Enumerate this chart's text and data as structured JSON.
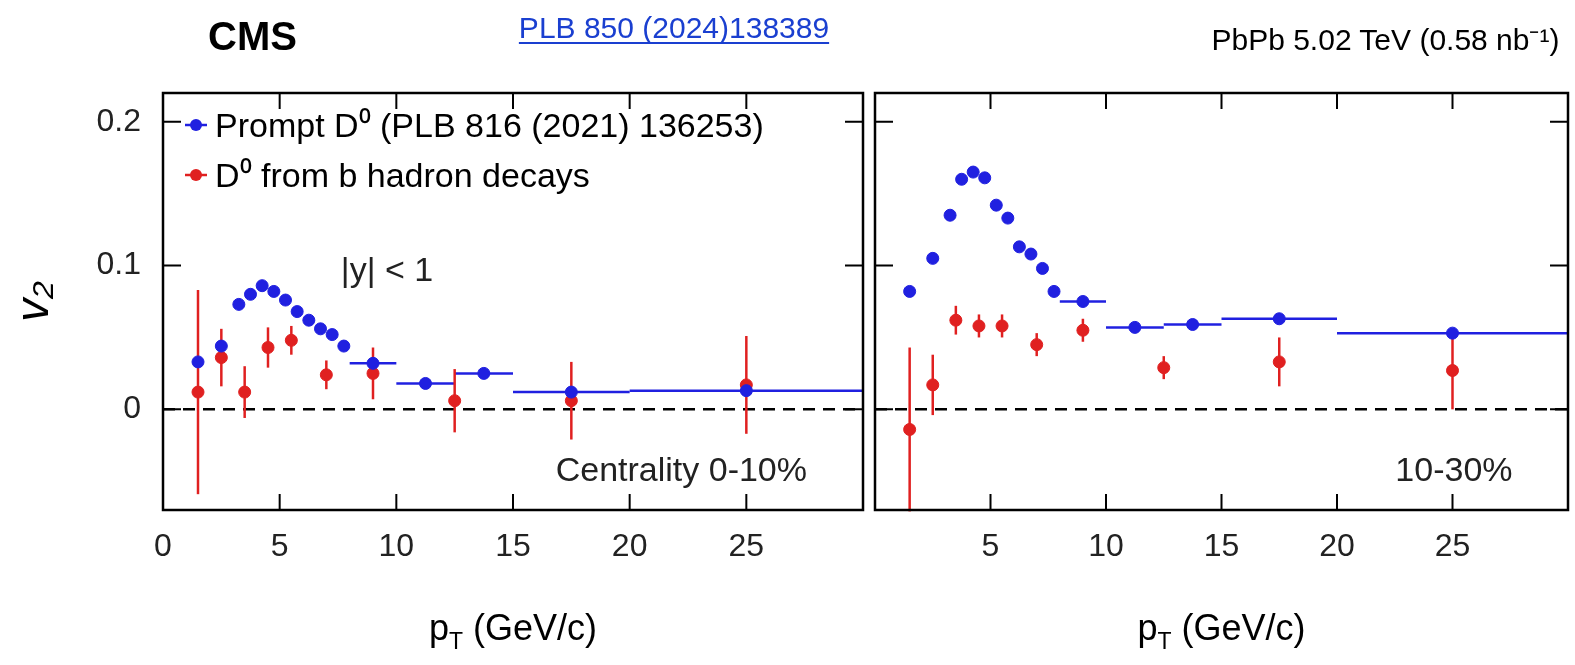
{
  "chart_data": [
    {
      "type": "scatter",
      "title": "CMS",
      "xlabel": "p$_{T}$ (GeV/c)",
      "ylabel": "v₂",
      "legend": "top left",
      "marker": "circle",
      "annotations": [
        "PLB 850 (2024)138389",
        "|y| < 1",
        "Centrality 0-10%"
      ],
      "xlim": [
        0,
        30
      ],
      "xticks": [
        0,
        5,
        10,
        15,
        20,
        25
      ],
      "ylim": [
        -0.07,
        0.22
      ],
      "yticks": [
        0,
        0.1,
        0.2
      ],
      "ref_lines": [
        {
          "axis": "y",
          "value": 0,
          "line_style": "dashed",
          "color": "#000000"
        }
      ],
      "series": [
        {
          "name": "Prompt D⁰ (PLB 816 (2021) 136253)",
          "color": "#2020e0",
          "x": [
            1.5,
            2.5,
            3.25,
            3.75,
            4.25,
            4.75,
            5.25,
            5.75,
            6.25,
            6.75,
            7.25,
            7.75,
            9,
            11.25,
            13.75,
            17.5,
            25
          ],
          "values": [
            0.033,
            0.044,
            0.073,
            0.08,
            0.086,
            0.082,
            0.076,
            0.068,
            0.062,
            0.056,
            0.052,
            0.044,
            0.032,
            0.018,
            0.025,
            0.012,
            0.013
          ],
          "xerrors": [
            null,
            null,
            null,
            null,
            null,
            null,
            null,
            null,
            null,
            null,
            null,
            null,
            1,
            1.25,
            1.25,
            2.5,
            5
          ]
        },
        {
          "name": "D⁰ from b hadron decays",
          "color": "#e02020",
          "x": [
            1.5,
            2.5,
            3.5,
            4.5,
            5.5,
            7,
            9,
            12.5,
            17.5,
            25
          ],
          "values": [
            0.012,
            0.036,
            0.012,
            0.043,
            0.048,
            0.024,
            0.025,
            0.006,
            0.006,
            0.017
          ],
          "errors": [
            0.071,
            0.02,
            0.018,
            0.014,
            0.01,
            0.01,
            0.018,
            0.022,
            0.027,
            0.034
          ]
        }
      ]
    },
    {
      "type": "scatter",
      "title": "PbPb 5.02 TeV (0.58 nb⁻¹)",
      "xlabel": "p$_{T}$ (GeV/c)",
      "marker": "circle",
      "tick_labels": "x",
      "annotations": [
        "10-30%"
      ],
      "xlim": [
        0,
        30
      ],
      "xticks": [
        5,
        10,
        15,
        20,
        25
      ],
      "ylim": [
        -0.07,
        0.22
      ],
      "yticks": [
        0,
        0.1,
        0.2
      ],
      "ref_lines": [
        {
          "axis": "y",
          "value": 0,
          "line_style": "dashed",
          "color": "#000000"
        }
      ],
      "series": [
        {
          "color": "#2020e0",
          "x": [
            1.5,
            2.5,
            3.25,
            3.75,
            4.25,
            4.75,
            5.25,
            5.75,
            6.25,
            6.75,
            7.25,
            7.75,
            9,
            11.25,
            13.75,
            17.5,
            25
          ],
          "values": [
            0.082,
            0.105,
            0.135,
            0.16,
            0.165,
            0.161,
            0.142,
            0.133,
            0.113,
            0.108,
            0.098,
            0.082,
            0.075,
            0.057,
            0.059,
            0.063,
            0.053
          ],
          "xerrors": [
            null,
            null,
            null,
            null,
            null,
            null,
            null,
            null,
            null,
            null,
            null,
            null,
            1,
            1.25,
            1.25,
            2.5,
            5
          ]
        },
        {
          "color": "#e02020",
          "x": [
            1.5,
            2.5,
            3.5,
            4.5,
            5.5,
            7,
            9,
            12.5,
            17.5,
            25
          ],
          "values": [
            -0.014,
            0.017,
            0.062,
            0.058,
            0.058,
            0.045,
            0.055,
            0.029,
            0.033,
            0.027
          ],
          "errors": [
            0.057,
            0.021,
            0.01,
            0.008,
            0.008,
            0.008,
            0.008,
            0.008,
            0.017,
            0.027
          ]
        }
      ]
    }
  ]
}
